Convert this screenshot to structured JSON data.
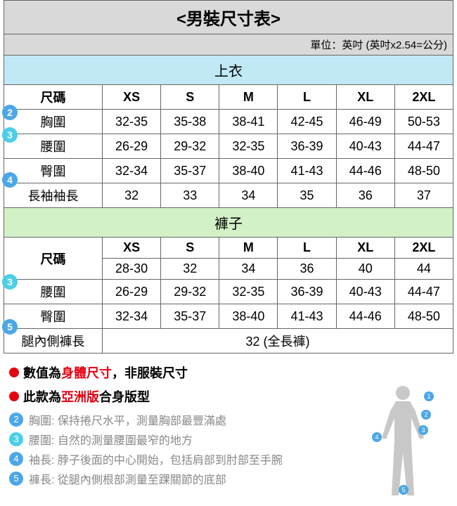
{
  "title": "<男裝尺寸表>",
  "unit": "單位：英吋 (英吋x2.54=公分)",
  "section_top": "上衣",
  "section_pants": "褲子",
  "size_label": "尺碼",
  "sizes": [
    "XS",
    "S",
    "M",
    "L",
    "XL",
    "2XL"
  ],
  "top_rows": [
    {
      "label": "胸圍",
      "badge": "2",
      "badge_color": "#4ba7e8",
      "values": [
        "32-35",
        "35-38",
        "38-41",
        "42-45",
        "46-49",
        "50-53"
      ]
    },
    {
      "label": "腰圍",
      "badge": "3",
      "badge_color": "#4bcfe8",
      "values": [
        "26-29",
        "29-32",
        "32-35",
        "36-39",
        "40-43",
        "44-47"
      ]
    },
    {
      "label": "臀圍",
      "badge": null,
      "values": [
        "32-34",
        "35-37",
        "38-40",
        "41-43",
        "44-46",
        "48-50"
      ]
    },
    {
      "label": "長袖袖長",
      "badge": "4",
      "badge_color": "#4ba7e8",
      "values": [
        "32",
        "33",
        "34",
        "35",
        "36",
        "37"
      ]
    }
  ],
  "pants_size_extra": [
    "28-30",
    "32",
    "34",
    "36",
    "40",
    "44"
  ],
  "pants_rows": [
    {
      "label": "腰圍",
      "badge": "3",
      "badge_color": "#4bcfe8",
      "values": [
        "26-29",
        "29-32",
        "32-35",
        "36-39",
        "40-43",
        "44-47"
      ]
    },
    {
      "label": "臀圍",
      "badge": null,
      "values": [
        "32-34",
        "35-37",
        "38-40",
        "41-43",
        "44-46",
        "48-50"
      ]
    }
  ],
  "inseam": {
    "label": "腿內側褲長",
    "badge": "5",
    "badge_color": "#4ba7e8",
    "value": "32 (全長褲)"
  },
  "note1": {
    "pre": "數值為",
    "em": "身體尺寸",
    "post": "，非服裝尺寸"
  },
  "note2": {
    "pre": "此款為",
    "em": "亞洲版",
    "post": "合身版型"
  },
  "legend": [
    {
      "num": "2",
      "color": "#4ba7e8",
      "label": "胸圍:",
      "text": "保持捲尺水平，測量胸部最豐滿處"
    },
    {
      "num": "3",
      "color": "#4bcfe8",
      "label": "腰圍:",
      "text": "自然的測量腰圍最窄的地方"
    },
    {
      "num": "4",
      "color": "#4ba7e8",
      "label": "袖長:",
      "text": "脖子後面的中心開始，包括肩部到肘部至手腕"
    },
    {
      "num": "5",
      "color": "#4ba7e8",
      "label": "褲長:",
      "text": "從腿內側根部測量至踝關節的底部"
    }
  ],
  "colors": {
    "header_bg": "#d9d9d9",
    "top_section_bg": "#c0e8f5",
    "pants_section_bg": "#d3f1c6",
    "border": "#666666",
    "red": "#e60012",
    "badge_blue": "#4ba7e8",
    "badge_cyan": "#4bcfe8",
    "legend_text": "#888888",
    "figure_fill": "#c8c8c8"
  }
}
